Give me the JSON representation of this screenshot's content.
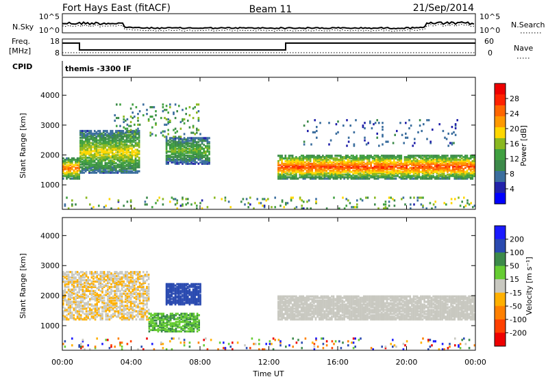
{
  "header": {
    "station": "Fort Hays East (fitACF)",
    "beam": "Beam 11",
    "date": "21/Sep/2014"
  },
  "strip_labels": {
    "nsky": "N.Sky",
    "nsky_ticks": [
      "10^5",
      "10^0"
    ],
    "nsearch": "N.Search",
    "nsearch_ticks": [
      "10^5",
      "10^0"
    ],
    "freq_line1": "Freq.",
    "freq_line2": "[MHz]",
    "freq_ticks": [
      "18",
      "8"
    ],
    "nave": "Nave",
    "nave_ticks": [
      "60",
      "0"
    ],
    "cpid": "CPID",
    "cpid_text": "themis -3300 IF"
  },
  "chart_data": [
    {
      "type": "heatmap",
      "panel": "power",
      "ylabel": "Slant Range [km]",
      "xlabel": "Time UT",
      "x_ticks": [
        "00:00",
        "04:00",
        "08:00",
        "12:00",
        "16:00",
        "20:00",
        "00:00"
      ],
      "xlim_hours": [
        0,
        24
      ],
      "y_ticks": [
        "1000",
        "2000",
        "3000",
        "4000"
      ],
      "ylim_km": [
        180,
        4600
      ],
      "colorbar_label": "Power [dB]",
      "colorbar_ticks": [
        "4",
        "8",
        "12",
        "16",
        "20",
        "24",
        "28"
      ],
      "colorbar_range_db": [
        0,
        33
      ],
      "colors": [
        "#0000ff",
        "#2222aa",
        "#3b6e9e",
        "#3c8a4a",
        "#40a040",
        "#8ab820",
        "#ffd700",
        "#ff9900",
        "#ff6600",
        "#ff2200",
        "#ee0000"
      ],
      "features": [
        {
          "name": "morning band",
          "t_start": 0.0,
          "t_end": 1.0,
          "range_km": [
            1200,
            1900
          ],
          "power_db": 24
        },
        {
          "name": "rising arc",
          "t_start": 1.0,
          "t_end": 4.5,
          "range_km": [
            1400,
            2800
          ],
          "power_db": 18
        },
        {
          "name": "noon patch",
          "t_start": 6.0,
          "t_end": 8.5,
          "range_km": [
            1700,
            2600
          ],
          "power_db": 14
        },
        {
          "name": "main band",
          "t_start": 12.5,
          "t_end": 24.0,
          "range_km": [
            1200,
            2000
          ],
          "power_db": 26
        }
      ]
    },
    {
      "type": "heatmap",
      "panel": "velocity",
      "ylabel": "Slant Range [km]",
      "xlabel": "Time UT",
      "x_ticks": [
        "00:00",
        "04:00",
        "08:00",
        "12:00",
        "16:00",
        "20:00",
        "00:00"
      ],
      "xlim_hours": [
        0,
        24
      ],
      "y_ticks": [
        "1000",
        "2000",
        "3000",
        "4000"
      ],
      "ylim_km": [
        180,
        4600
      ],
      "colorbar_label": "Velocity [m s⁻¹]",
      "colorbar_ticks": [
        "200",
        "100",
        "50",
        "15",
        "-15",
        "-50",
        "-100",
        "-200"
      ],
      "colors": [
        "#1a1aff",
        "#2a4ab0",
        "#3c8a4a",
        "#66cc33",
        "#c8c8c0",
        "#ffb000",
        "#ff8000",
        "#ff4000",
        "#ee0000"
      ],
      "features": [
        {
          "name": "ground scatter band",
          "t_start": 12.5,
          "t_end": 24.0,
          "range_km": [
            1200,
            2000
          ],
          "velocity_ms": 0
        },
        {
          "name": "blue patch",
          "t_start": 6.0,
          "t_end": 8.0,
          "range_km": [
            1700,
            2400
          ],
          "velocity_ms": 150
        }
      ]
    }
  ]
}
